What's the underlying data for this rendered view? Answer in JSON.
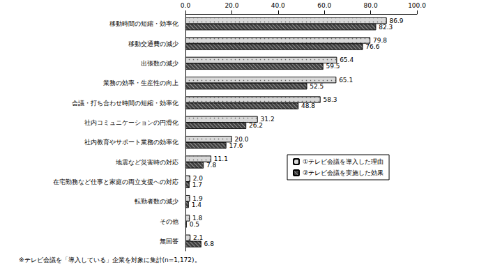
{
  "chart_data": {
    "type": "bar",
    "orientation": "horizontal",
    "categories": [
      "移動時間の短縮・効率化",
      "移動交通費の減少",
      "出張数の減少",
      "業務の効率・生産性の向上",
      "会議・打ち合わせ時間の短縮・効率化",
      "社内コミュニケーションの円滑化",
      "社内教育やサポート業務の効率化",
      "地震など災害時の対応",
      "在宅勤務など仕事と家庭の両立支援への対応",
      "転勤者数の減少",
      "その他",
      "無回答"
    ],
    "series": [
      {
        "name": "①テレビ会議を導入した理由",
        "color": "#d9d9d9",
        "values": [
          86.9,
          79.8,
          65.4,
          65.1,
          58.3,
          31.2,
          20.0,
          11.1,
          2.0,
          1.9,
          1.8,
          2.1
        ],
        "value_labels": [
          "86.9",
          "79.8",
          "65.4",
          "65.1",
          "58.3",
          "31.2",
          "20.0",
          "11.1",
          "2.0",
          "1.9",
          "1.8",
          "2.1"
        ]
      },
      {
        "name": "②テレビ会議を実施した効果",
        "color": "#404040",
        "values": [
          82.3,
          76.6,
          59.5,
          52.5,
          48.8,
          26.2,
          17.6,
          7.8,
          1.7,
          1.4,
          0.5,
          6.8
        ],
        "value_labels": [
          "82.3",
          "76.6",
          "59.5",
          "52.5",
          "48.8",
          "26.2",
          "17.6",
          "7.8",
          "1.7",
          "1.4",
          "0.5",
          "6.8"
        ]
      }
    ],
    "xlim": [
      0,
      100
    ],
    "xticks": [
      {
        "value": 0,
        "label": "0.0"
      },
      {
        "value": 20,
        "label": "20.0"
      },
      {
        "value": 40,
        "label": "40.0"
      },
      {
        "value": 60,
        "label": "60.0"
      },
      {
        "value": 80,
        "label": "80.0"
      },
      {
        "value": 100,
        "label": "100.0"
      }
    ],
    "annotations": [
      "※テレビ会議を「導入している」企業を対象に集計(n=1,172)。"
    ],
    "data_labels": true,
    "legend": "right",
    "grid": false
  }
}
